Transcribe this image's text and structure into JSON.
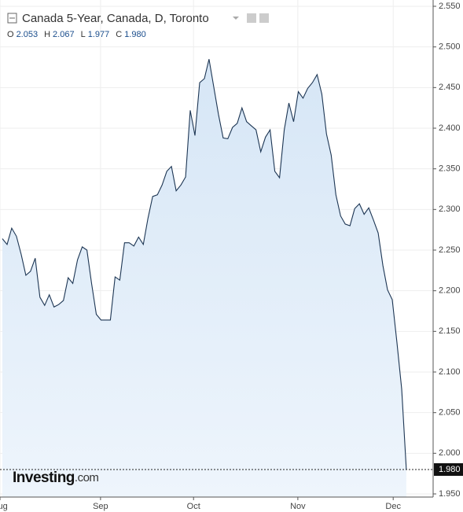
{
  "chart_data": {
    "type": "area",
    "title": "Canada 5-Year, Canada, D, Toronto",
    "ohlc": [
      {
        "name": "O",
        "value": 2.053,
        "label": "2.053"
      },
      {
        "name": "H",
        "value": 2.067,
        "label": "2.067"
      },
      {
        "name": "L",
        "value": 1.977,
        "label": "1.977"
      },
      {
        "name": "C",
        "value": 1.98,
        "label": "1.980"
      }
    ],
    "logo": [
      "Investing",
      ".com"
    ],
    "color": "#1c3553",
    "fill": "#dde9f7",
    "values": [
      2.264,
      2.257,
      2.277,
      2.267,
      2.245,
      2.219,
      2.224,
      2.24,
      2.192,
      2.182,
      2.195,
      2.18,
      2.183,
      2.188,
      2.216,
      2.209,
      2.238,
      2.254,
      2.25,
      2.209,
      2.171,
      2.164,
      2.164,
      2.164,
      2.217,
      2.213,
      2.259,
      2.259,
      2.255,
      2.266,
      2.257,
      2.289,
      2.316,
      2.318,
      2.33,
      2.347,
      2.353,
      2.323,
      2.33,
      2.34,
      2.422,
      2.391,
      2.456,
      2.461,
      2.485,
      2.451,
      2.417,
      2.388,
      2.387,
      2.401,
      2.406,
      2.425,
      2.408,
      2.403,
      2.398,
      2.371,
      2.389,
      2.398,
      2.347,
      2.339,
      2.398,
      2.431,
      2.408,
      2.445,
      2.437,
      2.449,
      2.456,
      2.466,
      2.442,
      2.393,
      2.367,
      2.318,
      2.292,
      2.282,
      2.28,
      2.301,
      2.307,
      2.294,
      2.302,
      2.287,
      2.271,
      2.231,
      2.201,
      2.189,
      2.136,
      2.079,
      1.98
    ],
    "last_price": {
      "value": 1.98,
      "label": "1.980"
    },
    "xlim": [
      -0.5,
      91.7
    ],
    "xticks": [
      {
        "value": -0.5,
        "label": "Aug"
      },
      {
        "value": 20.9,
        "label": "Sep"
      },
      {
        "value": 40.7,
        "label": "Oct"
      },
      {
        "value": 62.9,
        "label": "Nov"
      },
      {
        "value": 83.2,
        "label": "Dec"
      }
    ],
    "ylim": [
      1.95,
      2.55
    ],
    "yticks": [
      {
        "value": 1.95,
        "label": "1.950"
      },
      {
        "value": 2.0,
        "label": "2.000"
      },
      {
        "value": 2.05,
        "label": "2.050"
      },
      {
        "value": 2.1,
        "label": "2.100"
      },
      {
        "value": 2.15,
        "label": "2.150"
      },
      {
        "value": 2.2,
        "label": "2.200"
      },
      {
        "value": 2.25,
        "label": "2.250"
      },
      {
        "value": 2.3,
        "label": "2.300"
      },
      {
        "value": 2.35,
        "label": "2.350"
      },
      {
        "value": 2.4,
        "label": "2.400"
      },
      {
        "value": 2.45,
        "label": "2.450"
      },
      {
        "value": 2.5,
        "label": "2.500"
      },
      {
        "value": 2.55,
        "label": "2.550"
      }
    ],
    "grid": true
  }
}
